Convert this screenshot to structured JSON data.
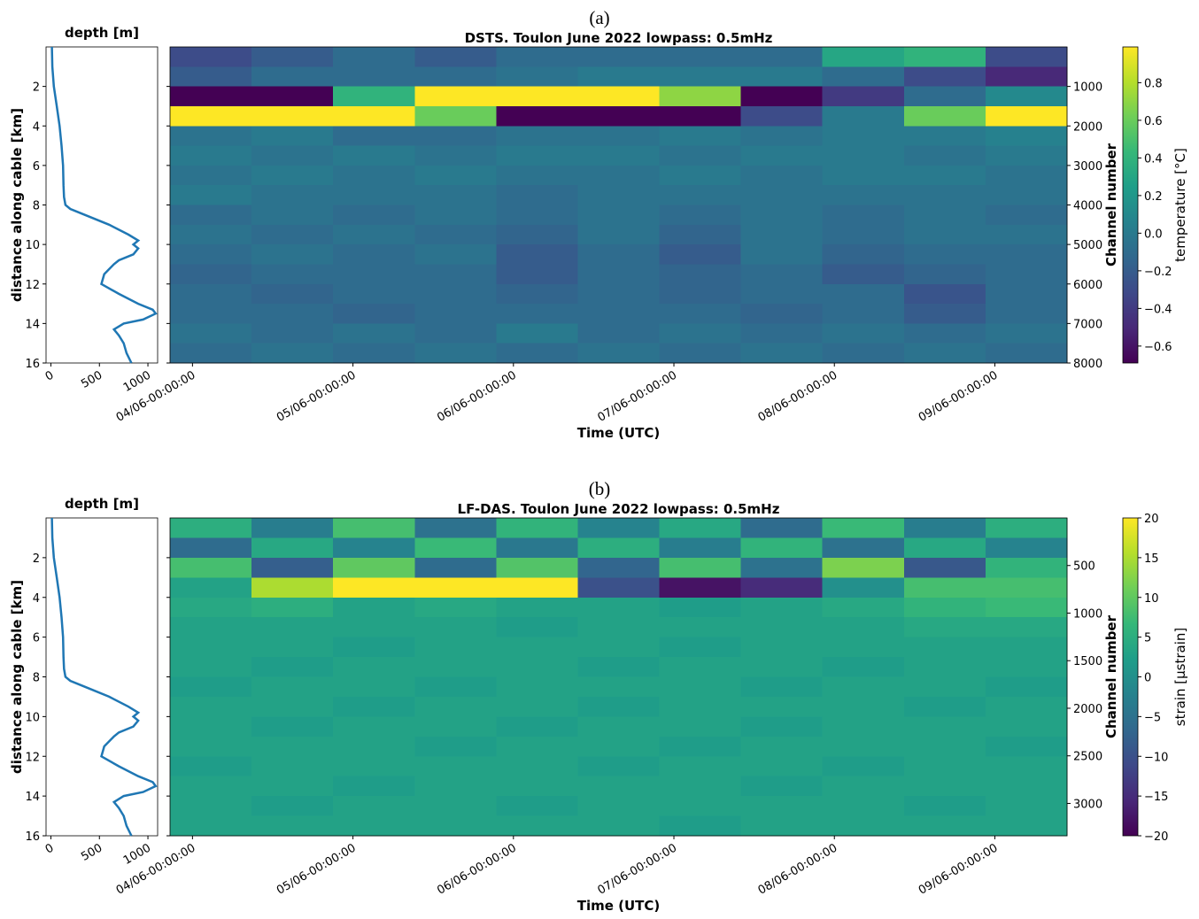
{
  "chart_data": [
    {
      "type": "line",
      "title": "depth [m]",
      "ylabel": "distance along cable [km]",
      "xlim": [
        -50,
        1100
      ],
      "xticks": [
        0,
        500,
        1000
      ],
      "ylim": [
        16,
        0
      ],
      "yticks": [
        2,
        4,
        6,
        8,
        10,
        12,
        14,
        16
      ],
      "series": [
        {
          "color": "#1f77b4",
          "x": [
            10,
            15,
            30,
            60,
            90,
            110,
            125,
            130,
            135,
            150,
            200,
            350,
            600,
            800,
            900,
            850,
            900,
            850,
            700,
            650,
            550,
            520,
            700,
            900,
            1050,
            1080,
            950,
            750,
            650,
            700,
            750,
            780,
            830
          ],
          "values": [
            0,
            1,
            2,
            3,
            4,
            5,
            6,
            7,
            7.6,
            8,
            8.2,
            8.5,
            9,
            9.5,
            9.8,
            10,
            10.2,
            10.5,
            10.8,
            11,
            11.5,
            12,
            12.5,
            13,
            13.3,
            13.5,
            13.8,
            14,
            14.3,
            14.6,
            15,
            15.5,
            16
          ]
        }
      ]
    },
    {
      "type": "heatmap",
      "panel_label": "(a)",
      "title": "DSTS. Toulon June 2022 lowpass: 0.5mHz",
      "xlabel": "Time (UTC)",
      "y2label": "Channel number",
      "colorbar_label": "temperature [°C]",
      "colormap": "viridis",
      "xlim": [
        3.86,
        9.45
      ],
      "xticks": [
        {
          "value": 4,
          "label": "04/06-00:00:00"
        },
        {
          "value": 5,
          "label": "05/06-00:00:00"
        },
        {
          "value": 6,
          "label": "06/06-00:00:00"
        },
        {
          "value": 7,
          "label": "07/06-00:00:00"
        },
        {
          "value": 8,
          "label": "08/06-00:00:00"
        },
        {
          "value": 9,
          "label": "09/06-00:00:00"
        }
      ],
      "ylim": [
        16,
        0
      ],
      "yticks": [
        2,
        4,
        6,
        8,
        10,
        12,
        14,
        16
      ],
      "y2lim": [
        8000,
        0
      ],
      "y2ticks": [
        1000,
        2000,
        3000,
        4000,
        5000,
        6000,
        7000,
        8000
      ],
      "clim": [
        -0.69,
        0.99
      ],
      "cticks": [
        {
          "value": -0.6,
          "label": "−0.6"
        },
        {
          "value": -0.4,
          "label": "−0.4"
        },
        {
          "value": -0.2,
          "label": "−0.2"
        },
        {
          "value": 0,
          "label": "0.0"
        },
        0.2,
        0.4,
        0.6,
        0.8
      ],
      "z": [
        [
          -0.3,
          -0.2,
          -0.1,
          -0.2,
          -0.1,
          -0.1,
          -0.1,
          -0.1,
          0.3,
          0.4,
          -0.3
        ],
        [
          -0.2,
          -0.1,
          -0.1,
          -0.1,
          -0.05,
          0,
          0,
          0,
          -0.1,
          -0.3,
          -0.5
        ],
        [
          -0.69,
          -0.69,
          0.4,
          0.99,
          0.99,
          0.99,
          0.7,
          -0.69,
          -0.4,
          -0.1,
          0.1
        ],
        [
          0.99,
          0.99,
          0.99,
          0.6,
          -0.69,
          -0.69,
          -0.69,
          -0.3,
          0,
          0.6,
          0.99
        ],
        [
          -0.05,
          0,
          -0.1,
          -0.1,
          -0.05,
          -0.05,
          0,
          -0.05,
          0,
          0,
          0.05
        ],
        [
          0,
          -0.05,
          0,
          -0.05,
          0,
          0,
          -0.05,
          0,
          0,
          -0.05,
          0
        ],
        [
          -0.05,
          0,
          -0.05,
          0,
          -0.05,
          -0.05,
          0,
          -0.05,
          0,
          0,
          -0.05
        ],
        [
          0,
          -0.05,
          -0.05,
          -0.05,
          -0.1,
          -0.05,
          -0.05,
          -0.05,
          -0.05,
          -0.05,
          -0.05
        ],
        [
          -0.1,
          -0.05,
          -0.1,
          -0.05,
          -0.1,
          -0.05,
          -0.1,
          -0.05,
          -0.1,
          -0.05,
          -0.1
        ],
        [
          -0.05,
          -0.1,
          -0.05,
          -0.1,
          -0.15,
          -0.05,
          -0.15,
          -0.05,
          -0.1,
          -0.05,
          -0.05
        ],
        [
          -0.1,
          -0.05,
          -0.1,
          -0.05,
          -0.2,
          -0.1,
          -0.2,
          -0.05,
          -0.15,
          -0.1,
          -0.1
        ],
        [
          -0.15,
          -0.1,
          -0.1,
          -0.1,
          -0.2,
          -0.1,
          -0.15,
          -0.1,
          -0.2,
          -0.15,
          -0.1
        ],
        [
          -0.1,
          -0.15,
          -0.1,
          -0.1,
          -0.15,
          -0.1,
          -0.15,
          -0.1,
          -0.1,
          -0.25,
          -0.1
        ],
        [
          -0.1,
          -0.1,
          -0.15,
          -0.1,
          -0.1,
          -0.1,
          -0.1,
          -0.15,
          -0.1,
          -0.2,
          -0.1
        ],
        [
          -0.05,
          -0.1,
          -0.05,
          -0.1,
          0,
          -0.1,
          -0.05,
          -0.1,
          -0.05,
          -0.1,
          -0.05
        ],
        [
          -0.1,
          -0.05,
          -0.1,
          -0.05,
          -0.1,
          -0.05,
          -0.1,
          -0.05,
          -0.1,
          -0.05,
          -0.1
        ]
      ]
    },
    {
      "type": "line",
      "title": "depth [m]",
      "ylabel": "distance along cable [km]",
      "xlim": [
        -50,
        1100
      ],
      "xticks": [
        0,
        500,
        1000
      ],
      "ylim": [
        16,
        0
      ],
      "yticks": [
        2,
        4,
        6,
        8,
        10,
        12,
        14,
        16
      ],
      "series": [
        {
          "color": "#1f77b4",
          "x": [
            10,
            15,
            30,
            60,
            90,
            110,
            125,
            130,
            135,
            150,
            200,
            350,
            600,
            800,
            900,
            850,
            900,
            850,
            700,
            650,
            550,
            520,
            700,
            900,
            1050,
            1080,
            950,
            750,
            650,
            700,
            750,
            780,
            830
          ],
          "values": [
            0,
            1,
            2,
            3,
            4,
            5,
            6,
            7,
            7.6,
            8,
            8.2,
            8.5,
            9,
            9.5,
            9.8,
            10,
            10.2,
            10.5,
            10.8,
            11,
            11.5,
            12,
            12.5,
            13,
            13.3,
            13.5,
            13.8,
            14,
            14.3,
            14.6,
            15,
            15.5,
            16
          ]
        }
      ]
    },
    {
      "type": "heatmap",
      "panel_label": "(b)",
      "title": "LF-DAS. Toulon June 2022 lowpass: 0.5mHz",
      "xlabel": "Time (UTC)",
      "y2label": "Channel number",
      "colorbar_label": "strain [μstrain]",
      "colormap": "viridis",
      "xlim": [
        3.86,
        9.45
      ],
      "xticks": [
        {
          "value": 4,
          "label": "04/06-00:00:00"
        },
        {
          "value": 5,
          "label": "05/06-00:00:00"
        },
        {
          "value": 6,
          "label": "06/06-00:00:00"
        },
        {
          "value": 7,
          "label": "07/06-00:00:00"
        },
        {
          "value": 8,
          "label": "08/06-00:00:00"
        },
        {
          "value": 9,
          "label": "09/06-00:00:00"
        }
      ],
      "ylim": [
        16,
        0
      ],
      "yticks": [
        2,
        4,
        6,
        8,
        10,
        12,
        14,
        16
      ],
      "y2lim": [
        3340,
        0
      ],
      "y2ticks": [
        500,
        1000,
        1500,
        2000,
        2500,
        3000
      ],
      "clim": [
        -20,
        20
      ],
      "cticks": [
        {
          "value": -20,
          "label": "−20"
        },
        {
          "value": -15,
          "label": "−15"
        },
        {
          "value": -10,
          "label": "−10"
        },
        {
          "value": -5,
          "label": "−5"
        },
        0,
        5,
        10,
        15,
        20
      ],
      "z": [
        [
          5,
          -3,
          8,
          -5,
          6,
          -2,
          4,
          -6,
          7,
          -3,
          5
        ],
        [
          -6,
          4,
          -2,
          7,
          -4,
          5,
          -3,
          6,
          -5,
          4,
          -2
        ],
        [
          8,
          -8,
          10,
          -6,
          9,
          -7,
          8,
          -5,
          12,
          -9,
          6
        ],
        [
          3,
          15,
          20,
          20,
          20,
          -10,
          -18,
          -15,
          0,
          8,
          8
        ],
        [
          4,
          5,
          3,
          4,
          3,
          3,
          2,
          3,
          4,
          6,
          7
        ],
        [
          3,
          3,
          3,
          3,
          2,
          3,
          3,
          3,
          3,
          4,
          4
        ],
        [
          3,
          3,
          2,
          3,
          3,
          3,
          2,
          3,
          3,
          3,
          3
        ],
        [
          3,
          2,
          3,
          3,
          3,
          2,
          3,
          3,
          2,
          3,
          3
        ],
        [
          2,
          3,
          3,
          2,
          3,
          3,
          3,
          2,
          3,
          3,
          2
        ],
        [
          3,
          3,
          2,
          3,
          3,
          2,
          3,
          3,
          3,
          2,
          3
        ],
        [
          3,
          2,
          3,
          3,
          2,
          3,
          3,
          2,
          3,
          3,
          3
        ],
        [
          3,
          3,
          3,
          2,
          3,
          3,
          2,
          3,
          3,
          3,
          2
        ],
        [
          2,
          3,
          3,
          3,
          3,
          2,
          3,
          3,
          2,
          3,
          3
        ],
        [
          3,
          3,
          2,
          3,
          3,
          3,
          3,
          2,
          3,
          3,
          3
        ],
        [
          3,
          2,
          3,
          3,
          2,
          3,
          3,
          3,
          3,
          2,
          3
        ],
        [
          3,
          3,
          3,
          3,
          3,
          3,
          2,
          3,
          3,
          3,
          3
        ]
      ]
    }
  ]
}
